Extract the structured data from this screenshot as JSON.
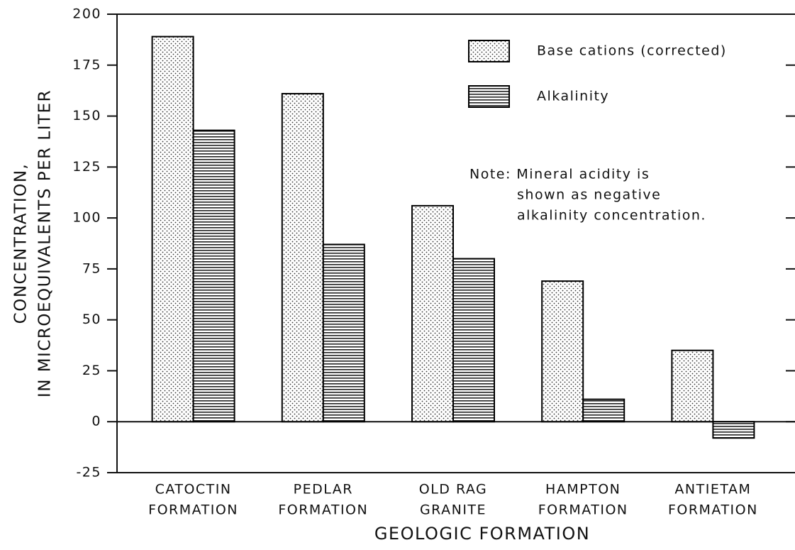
{
  "chart_data": {
    "type": "bar",
    "y_label": [
      "CONCENTRATION,",
      "IN MICROEQUIVALENTS PER LITER"
    ],
    "x_label": "GEOLOGIC FORMATION",
    "categories": [
      [
        "CATOCTIN",
        "FORMATION"
      ],
      [
        "PEDLAR",
        "FORMATION"
      ],
      [
        "OLD RAG",
        "GRANITE"
      ],
      [
        "HAMPTON",
        "FORMATION"
      ],
      [
        "ANTIETAM",
        "FORMATION"
      ]
    ],
    "series": [
      {
        "name": "Base cations (corrected)",
        "pattern": "dots",
        "color": "#000000",
        "values": [
          189,
          161,
          106,
          69,
          35
        ]
      },
      {
        "name": "Alkalinity",
        "pattern": "hlines",
        "color": "#000000",
        "values": [
          143,
          87,
          80,
          11,
          -8
        ]
      }
    ],
    "annotation": [
      "Note: Mineral acidity is",
      "shown as negative",
      "alkalinity concentration."
    ],
    "ylim": [
      -25,
      200
    ],
    "yticks": [
      -25,
      0,
      25,
      50,
      75,
      100,
      125,
      150,
      175,
      200
    ],
    "legend": "upper right"
  }
}
